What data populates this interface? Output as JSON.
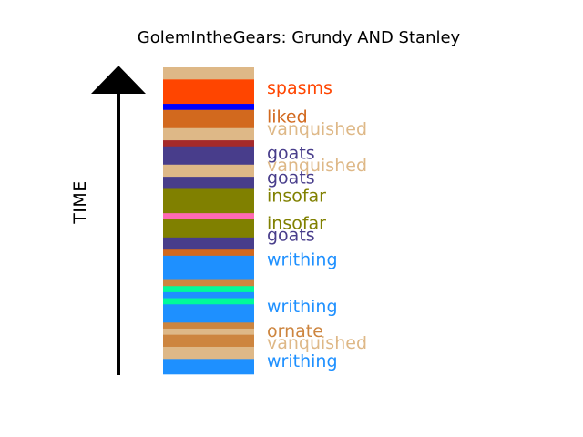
{
  "chart_data": {
    "type": "bar",
    "orientation": "stacked-timeline",
    "title": "GolemIntheGears: Grundy AND Stanley",
    "ylabel": "TIME",
    "segments": [
      {
        "color": "#deb887",
        "span": [
          0,
          4
        ]
      },
      {
        "color": "#ff4500",
        "span": [
          4,
          12
        ]
      },
      {
        "color": "#0000ff",
        "span": [
          12,
          14
        ]
      },
      {
        "color": "#d2691e",
        "span": [
          14,
          20
        ]
      },
      {
        "color": "#deb887",
        "span": [
          20,
          24
        ]
      },
      {
        "color": "#a52a2a",
        "span": [
          24,
          26
        ]
      },
      {
        "color": "#483d8b",
        "span": [
          26,
          32
        ]
      },
      {
        "color": "#deb887",
        "span": [
          32,
          36
        ]
      },
      {
        "color": "#483d8b",
        "span": [
          36,
          40
        ]
      },
      {
        "color": "#808000",
        "span": [
          40,
          48
        ]
      },
      {
        "color": "#ff69b4",
        "span": [
          48,
          50
        ]
      },
      {
        "color": "#808000",
        "span": [
          50,
          56
        ]
      },
      {
        "color": "#483d8b",
        "span": [
          56,
          60
        ]
      },
      {
        "color": "#d2691e",
        "span": [
          60,
          62
        ]
      },
      {
        "color": "#1e90ff",
        "span": [
          62,
          70
        ]
      },
      {
        "color": "#cd853f",
        "span": [
          70,
          72
        ]
      },
      {
        "color": "#00fa9a",
        "span": [
          72,
          74
        ]
      },
      {
        "color": "#1e90ff",
        "span": [
          74,
          76
        ]
      },
      {
        "color": "#00fa9a",
        "span": [
          76,
          78
        ]
      },
      {
        "color": "#1e90ff",
        "span": [
          78,
          84
        ]
      },
      {
        "color": "#cd853f",
        "span": [
          84,
          86
        ]
      },
      {
        "color": "#deb887",
        "span": [
          86,
          88
        ]
      },
      {
        "color": "#cd853f",
        "span": [
          88,
          92
        ]
      },
      {
        "color": "#deb887",
        "span": [
          92,
          96
        ]
      },
      {
        "color": "#1e90ff",
        "span": [
          96,
          101
        ]
      }
    ],
    "labels": [
      {
        "text": "spasms",
        "color": "#ff4500",
        "pos": 7
      },
      {
        "text": "liked",
        "color": "#d2691e",
        "pos": 16.5
      },
      {
        "text": "vanquished",
        "color": "#deb887",
        "pos": 20.5
      },
      {
        "text": "goats",
        "color": "#483d8b",
        "pos": 28.5
      },
      {
        "text": "vanquished",
        "color": "#deb887",
        "pos": 32.5
      },
      {
        "text": "goats",
        "color": "#483d8b",
        "pos": 36.5
      },
      {
        "text": "insofar",
        "color": "#808000",
        "pos": 42.5
      },
      {
        "text": "insofar",
        "color": "#808000",
        "pos": 51.5
      },
      {
        "text": "goats",
        "color": "#483d8b",
        "pos": 55.5
      },
      {
        "text": "writhing",
        "color": "#1e90ff",
        "pos": 63.5
      },
      {
        "text": "writhing",
        "color": "#1e90ff",
        "pos": 79
      },
      {
        "text": "ornate",
        "color": "#cd853f",
        "pos": 87
      },
      {
        "text": "vanquished",
        "color": "#deb887",
        "pos": 91
      },
      {
        "text": "writhing",
        "color": "#1e90ff",
        "pos": 97
      }
    ]
  }
}
